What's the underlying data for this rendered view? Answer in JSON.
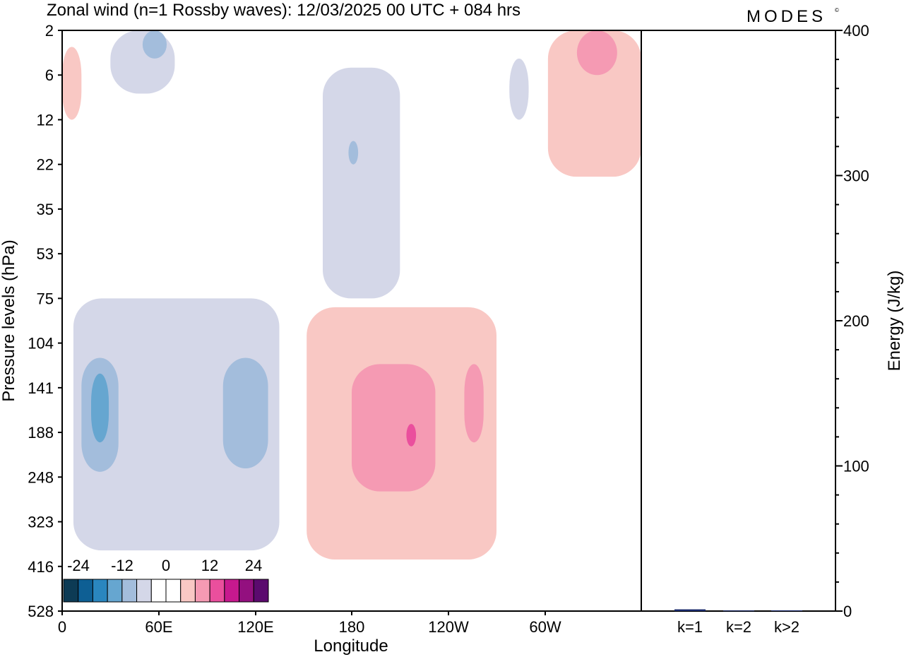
{
  "header": {
    "title": "Zonal wind (n=1 Rossby waves):  12/03/2025  00 UTC  + 084 hrs",
    "logo_text": "MODES",
    "logo_mark": "©"
  },
  "chart_data": [
    {
      "type": "heatmap",
      "xlabel": "Longitude",
      "ylabel": "Pressure levels (hPa)",
      "x_ticks": [
        "0",
        "60E",
        "120E",
        "180",
        "120W",
        "60W"
      ],
      "y_ticks": [
        "2",
        "6",
        "12",
        "22",
        "35",
        "53",
        "75",
        "104",
        "141",
        "188",
        "248",
        "323",
        "416",
        "528"
      ],
      "colorbar": {
        "tick_labels": [
          "-24",
          "-12",
          "0",
          "12",
          "24"
        ],
        "colors": [
          "#0d3b55",
          "#0e5f94",
          "#2a86bf",
          "#66a6d0",
          "#a3bddc",
          "#d4d7e8",
          "#ffffff",
          "#ffffff",
          "#f9c8c4",
          "#f59ab3",
          "#ea4f9d",
          "#c7198e",
          "#93107f",
          "#5b0a6e"
        ]
      },
      "regions": [
        {
          "sign": "negative",
          "level": 1,
          "color": "#d4d7e8",
          "lon": [
            30,
            70
          ],
          "p": [
            2,
            8
          ]
        },
        {
          "sign": "negative",
          "level": 2,
          "color": "#a3bddc",
          "lon": [
            50,
            65
          ],
          "p": [
            2,
            4
          ]
        },
        {
          "sign": "negative",
          "level": 1,
          "color": "#d4d7e8",
          "lon": [
            162,
            210
          ],
          "p": [
            5,
            75
          ]
        },
        {
          "sign": "negative",
          "level": 2,
          "color": "#a3bddc",
          "lon": [
            178,
            184
          ],
          "p": [
            16,
            22
          ]
        },
        {
          "sign": "negative",
          "level": 1,
          "color": "#d4d7e8",
          "lon": [
            278,
            290
          ],
          "p": [
            4,
            12
          ]
        },
        {
          "sign": "negative",
          "level": 1,
          "color": "#d4d7e8",
          "lon": [
            7,
            135
          ],
          "p": [
            75,
            380
          ]
        },
        {
          "sign": "negative",
          "level": 2,
          "color": "#a3bddc",
          "lon": [
            12,
            35
          ],
          "p": [
            115,
            240
          ]
        },
        {
          "sign": "negative",
          "level": 3,
          "color": "#66a6d0",
          "lon": [
            18,
            29
          ],
          "p": [
            128,
            200
          ]
        },
        {
          "sign": "negative",
          "level": 2,
          "color": "#a3bddc",
          "lon": [
            100,
            128
          ],
          "p": [
            115,
            235
          ]
        },
        {
          "sign": "positive",
          "level": 1,
          "color": "#f9c8c4",
          "lon": [
            0,
            12
          ],
          "p": [
            3,
            12
          ]
        },
        {
          "sign": "positive",
          "level": 1,
          "color": "#f9c8c4",
          "lon": [
            302,
            360
          ],
          "p": [
            2,
            25
          ]
        },
        {
          "sign": "positive",
          "level": 2,
          "color": "#f59ab3",
          "lon": [
            320,
            345
          ],
          "p": [
            2,
            6
          ]
        },
        {
          "sign": "positive",
          "level": 1,
          "color": "#f9c8c4",
          "lon": [
            152,
            270
          ],
          "p": [
            80,
            400
          ]
        },
        {
          "sign": "positive",
          "level": 2,
          "color": "#f59ab3",
          "lon": [
            180,
            232
          ],
          "p": [
            120,
            270
          ]
        },
        {
          "sign": "positive",
          "level": 3,
          "color": "#ea4f9d",
          "lon": [
            214,
            220
          ],
          "p": [
            178,
            205
          ]
        },
        {
          "sign": "positive",
          "level": 2,
          "color": "#f59ab3",
          "lon": [
            250,
            262
          ],
          "p": [
            120,
            200
          ]
        }
      ]
    },
    {
      "type": "bar",
      "ylabel": "Energy (J/kg)",
      "categories": [
        "k=1",
        "k=2",
        "k>2"
      ],
      "values": [
        1.2,
        0.4,
        0.5
      ],
      "ylim": [
        0,
        400
      ],
      "y_ticks": [
        "0",
        "100",
        "200",
        "300",
        "400"
      ],
      "bar_color": "#1a2a6c"
    }
  ]
}
